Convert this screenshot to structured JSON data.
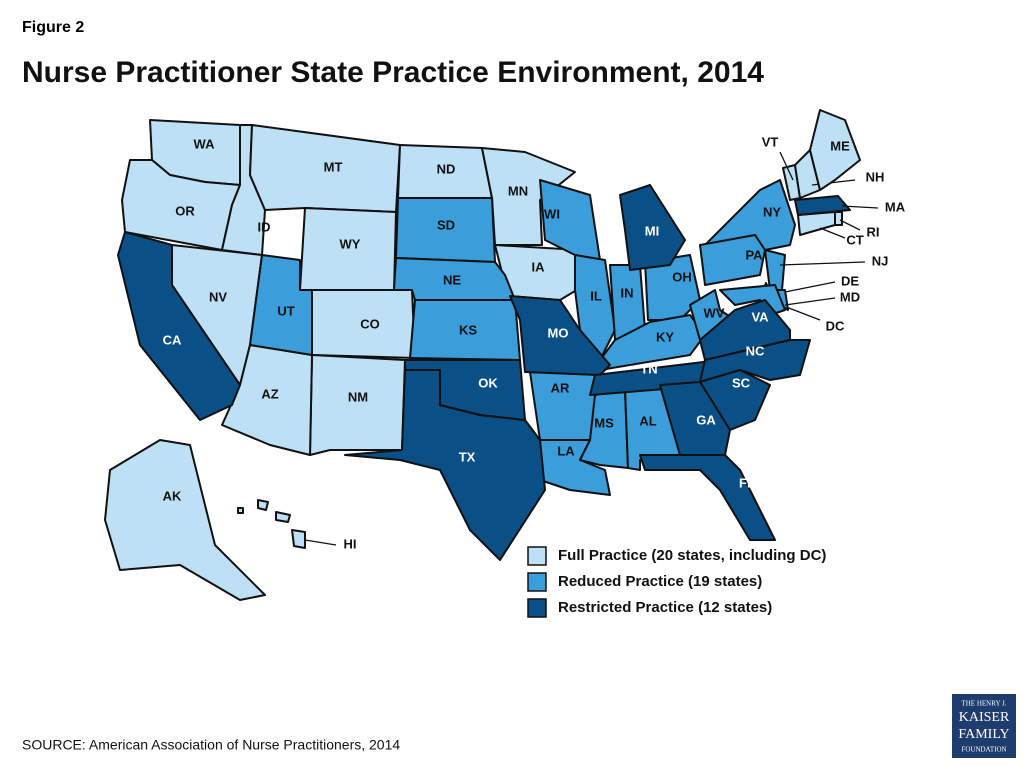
{
  "figure_label": "Figure 2",
  "title": "Nurse Practitioner State Practice Environment, 2014",
  "legend": [
    {
      "label": "Full Practice (20 states, including DC)",
      "color": "#bde0f5",
      "states": [
        "WA",
        "OR",
        "ID",
        "MT",
        "WY",
        "ND",
        "MN",
        "IA",
        "NV",
        "CO",
        "NM",
        "AZ",
        "AK",
        "HI",
        "VT",
        "NH",
        "ME",
        "RI",
        "CT",
        "DC"
      ]
    },
    {
      "label": "Reduced Practice (19 states)",
      "color": "#3c9ddb",
      "states": [
        "SD",
        "NE",
        "KS",
        "UT",
        "WI",
        "IL",
        "IN",
        "OH",
        "KY",
        "WV",
        "NY",
        "PA",
        "NJ",
        "DE",
        "MD",
        "AR",
        "LA",
        "MS",
        "AL"
      ]
    },
    {
      "label": "Restricted Practice (12 states)",
      "color": "#0b4f87",
      "states": [
        "CA",
        "TX",
        "OK",
        "MO",
        "MI",
        "TN",
        "VA",
        "NC",
        "SC",
        "GA",
        "FL",
        "MA"
      ]
    }
  ],
  "source": "SOURCE: American Association of Nurse Practitioners, 2014",
  "logo": [
    "THE HENRY J.",
    "KAISER",
    "FAMILY",
    "FOUNDATION"
  ]
}
